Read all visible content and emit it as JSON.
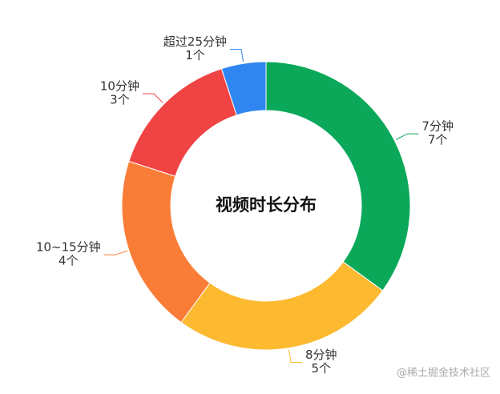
{
  "chart_data": {
    "type": "donut",
    "title": "视频时长分布",
    "categories": [
      "7分钟",
      "8分钟",
      "10~15分钟",
      "10分钟",
      "超过25分钟"
    ],
    "values": [
      7,
      5,
      4,
      3,
      1
    ],
    "value_labels": [
      "7个",
      "5个",
      "4个",
      "3个",
      "1个"
    ],
    "colors": [
      "#0ba85a",
      "#fdb930",
      "#fa7d37",
      "#f04343",
      "#2f86f0"
    ]
  },
  "watermark": "@稀土掘金技术社区"
}
